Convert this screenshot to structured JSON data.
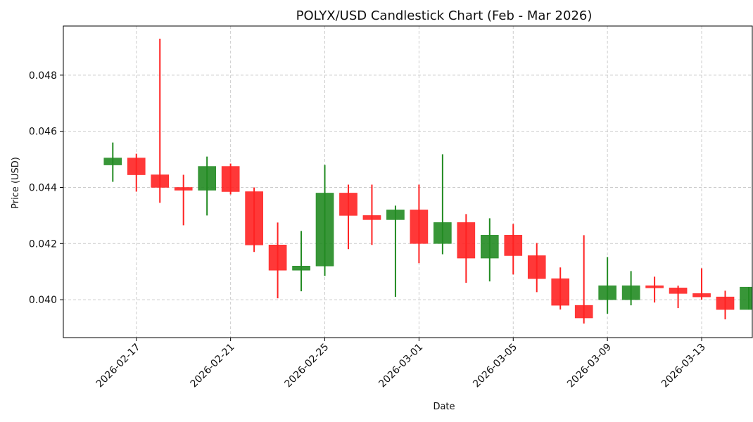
{
  "chart_data": {
    "type": "candlestick",
    "title": "POLYX/USD Candlestick Chart (Feb - Mar 2026)",
    "xlabel": "Date",
    "ylabel": "Price (USD)",
    "ylim": [
      0.03865,
      0.04975
    ],
    "xlim": [
      "2026-02-14",
      "2026-03-15"
    ],
    "grid": true,
    "colors": {
      "up": "#228b22",
      "down": "#ff2222"
    },
    "y_ticks": [
      {
        "value": 0.04,
        "label": "0.040"
      },
      {
        "value": 0.042,
        "label": "0.042"
      },
      {
        "value": 0.044,
        "label": "0.044"
      },
      {
        "value": 0.046,
        "label": "0.046"
      },
      {
        "value": 0.048,
        "label": "0.048"
      }
    ],
    "x_ticks": [
      "2026-02-17",
      "2026-02-21",
      "2026-02-25",
      "2026-03-01",
      "2026-03-05",
      "2026-03-09",
      "2026-03-13"
    ],
    "candles": [
      {
        "date": "2026-02-16",
        "open": 0.0448,
        "high": 0.0456,
        "low": 0.0442,
        "close": 0.04505
      },
      {
        "date": "2026-02-17",
        "open": 0.04505,
        "high": 0.0452,
        "low": 0.04385,
        "close": 0.04445
      },
      {
        "date": "2026-02-18",
        "open": 0.04445,
        "high": 0.0493,
        "low": 0.04345,
        "close": 0.044
      },
      {
        "date": "2026-02-19",
        "open": 0.044,
        "high": 0.04445,
        "low": 0.04265,
        "close": 0.0439
      },
      {
        "date": "2026-02-20",
        "open": 0.0439,
        "high": 0.0451,
        "low": 0.043,
        "close": 0.04475
      },
      {
        "date": "2026-02-21",
        "open": 0.04475,
        "high": 0.04485,
        "low": 0.04375,
        "close": 0.04385
      },
      {
        "date": "2026-02-22",
        "open": 0.04385,
        "high": 0.044,
        "low": 0.0417,
        "close": 0.04195
      },
      {
        "date": "2026-02-23",
        "open": 0.04195,
        "high": 0.04275,
        "low": 0.04005,
        "close": 0.04105
      },
      {
        "date": "2026-02-24",
        "open": 0.04105,
        "high": 0.04245,
        "low": 0.0403,
        "close": 0.0412
      },
      {
        "date": "2026-02-25",
        "open": 0.0412,
        "high": 0.0448,
        "low": 0.04085,
        "close": 0.0438
      },
      {
        "date": "2026-02-26",
        "open": 0.0438,
        "high": 0.0441,
        "low": 0.0418,
        "close": 0.043
      },
      {
        "date": "2026-02-27",
        "open": 0.043,
        "high": 0.0441,
        "low": 0.04195,
        "close": 0.04285
      },
      {
        "date": "2026-02-28",
        "open": 0.04285,
        "high": 0.04335,
        "low": 0.0401,
        "close": 0.0432
      },
      {
        "date": "2026-03-01",
        "open": 0.0432,
        "high": 0.0441,
        "low": 0.0413,
        "close": 0.042
      },
      {
        "date": "2026-03-02",
        "open": 0.042,
        "high": 0.04518,
        "low": 0.04162,
        "close": 0.04275
      },
      {
        "date": "2026-03-03",
        "open": 0.04275,
        "high": 0.04305,
        "low": 0.0406,
        "close": 0.04148
      },
      {
        "date": "2026-03-04",
        "open": 0.04148,
        "high": 0.0429,
        "low": 0.04065,
        "close": 0.0423
      },
      {
        "date": "2026-03-05",
        "open": 0.0423,
        "high": 0.0427,
        "low": 0.0409,
        "close": 0.04157
      },
      {
        "date": "2026-03-06",
        "open": 0.04157,
        "high": 0.04202,
        "low": 0.04027,
        "close": 0.04075
      },
      {
        "date": "2026-03-07",
        "open": 0.04075,
        "high": 0.04115,
        "low": 0.03965,
        "close": 0.0398
      },
      {
        "date": "2026-03-08",
        "open": 0.0398,
        "high": 0.0423,
        "low": 0.03915,
        "close": 0.03935
      },
      {
        "date": "2026-03-09",
        "open": 0.04,
        "high": 0.04152,
        "low": 0.0395,
        "close": 0.0405
      },
      {
        "date": "2026-03-10",
        "open": 0.04,
        "high": 0.04102,
        "low": 0.0398,
        "close": 0.0405
      },
      {
        "date": "2026-03-11",
        "open": 0.0405,
        "high": 0.04082,
        "low": 0.0399,
        "close": 0.04042
      },
      {
        "date": "2026-03-12",
        "open": 0.04042,
        "high": 0.0405,
        "low": 0.0397,
        "close": 0.04022
      },
      {
        "date": "2026-03-13",
        "open": 0.04022,
        "high": 0.04112,
        "low": 0.04,
        "close": 0.0401
      },
      {
        "date": "2026-03-14",
        "open": 0.0401,
        "high": 0.04032,
        "low": 0.0393,
        "close": 0.03965
      },
      {
        "date": "2026-03-15",
        "open": 0.03965,
        "high": 0.04045,
        "low": 0.03965,
        "close": 0.04045
      }
    ]
  }
}
